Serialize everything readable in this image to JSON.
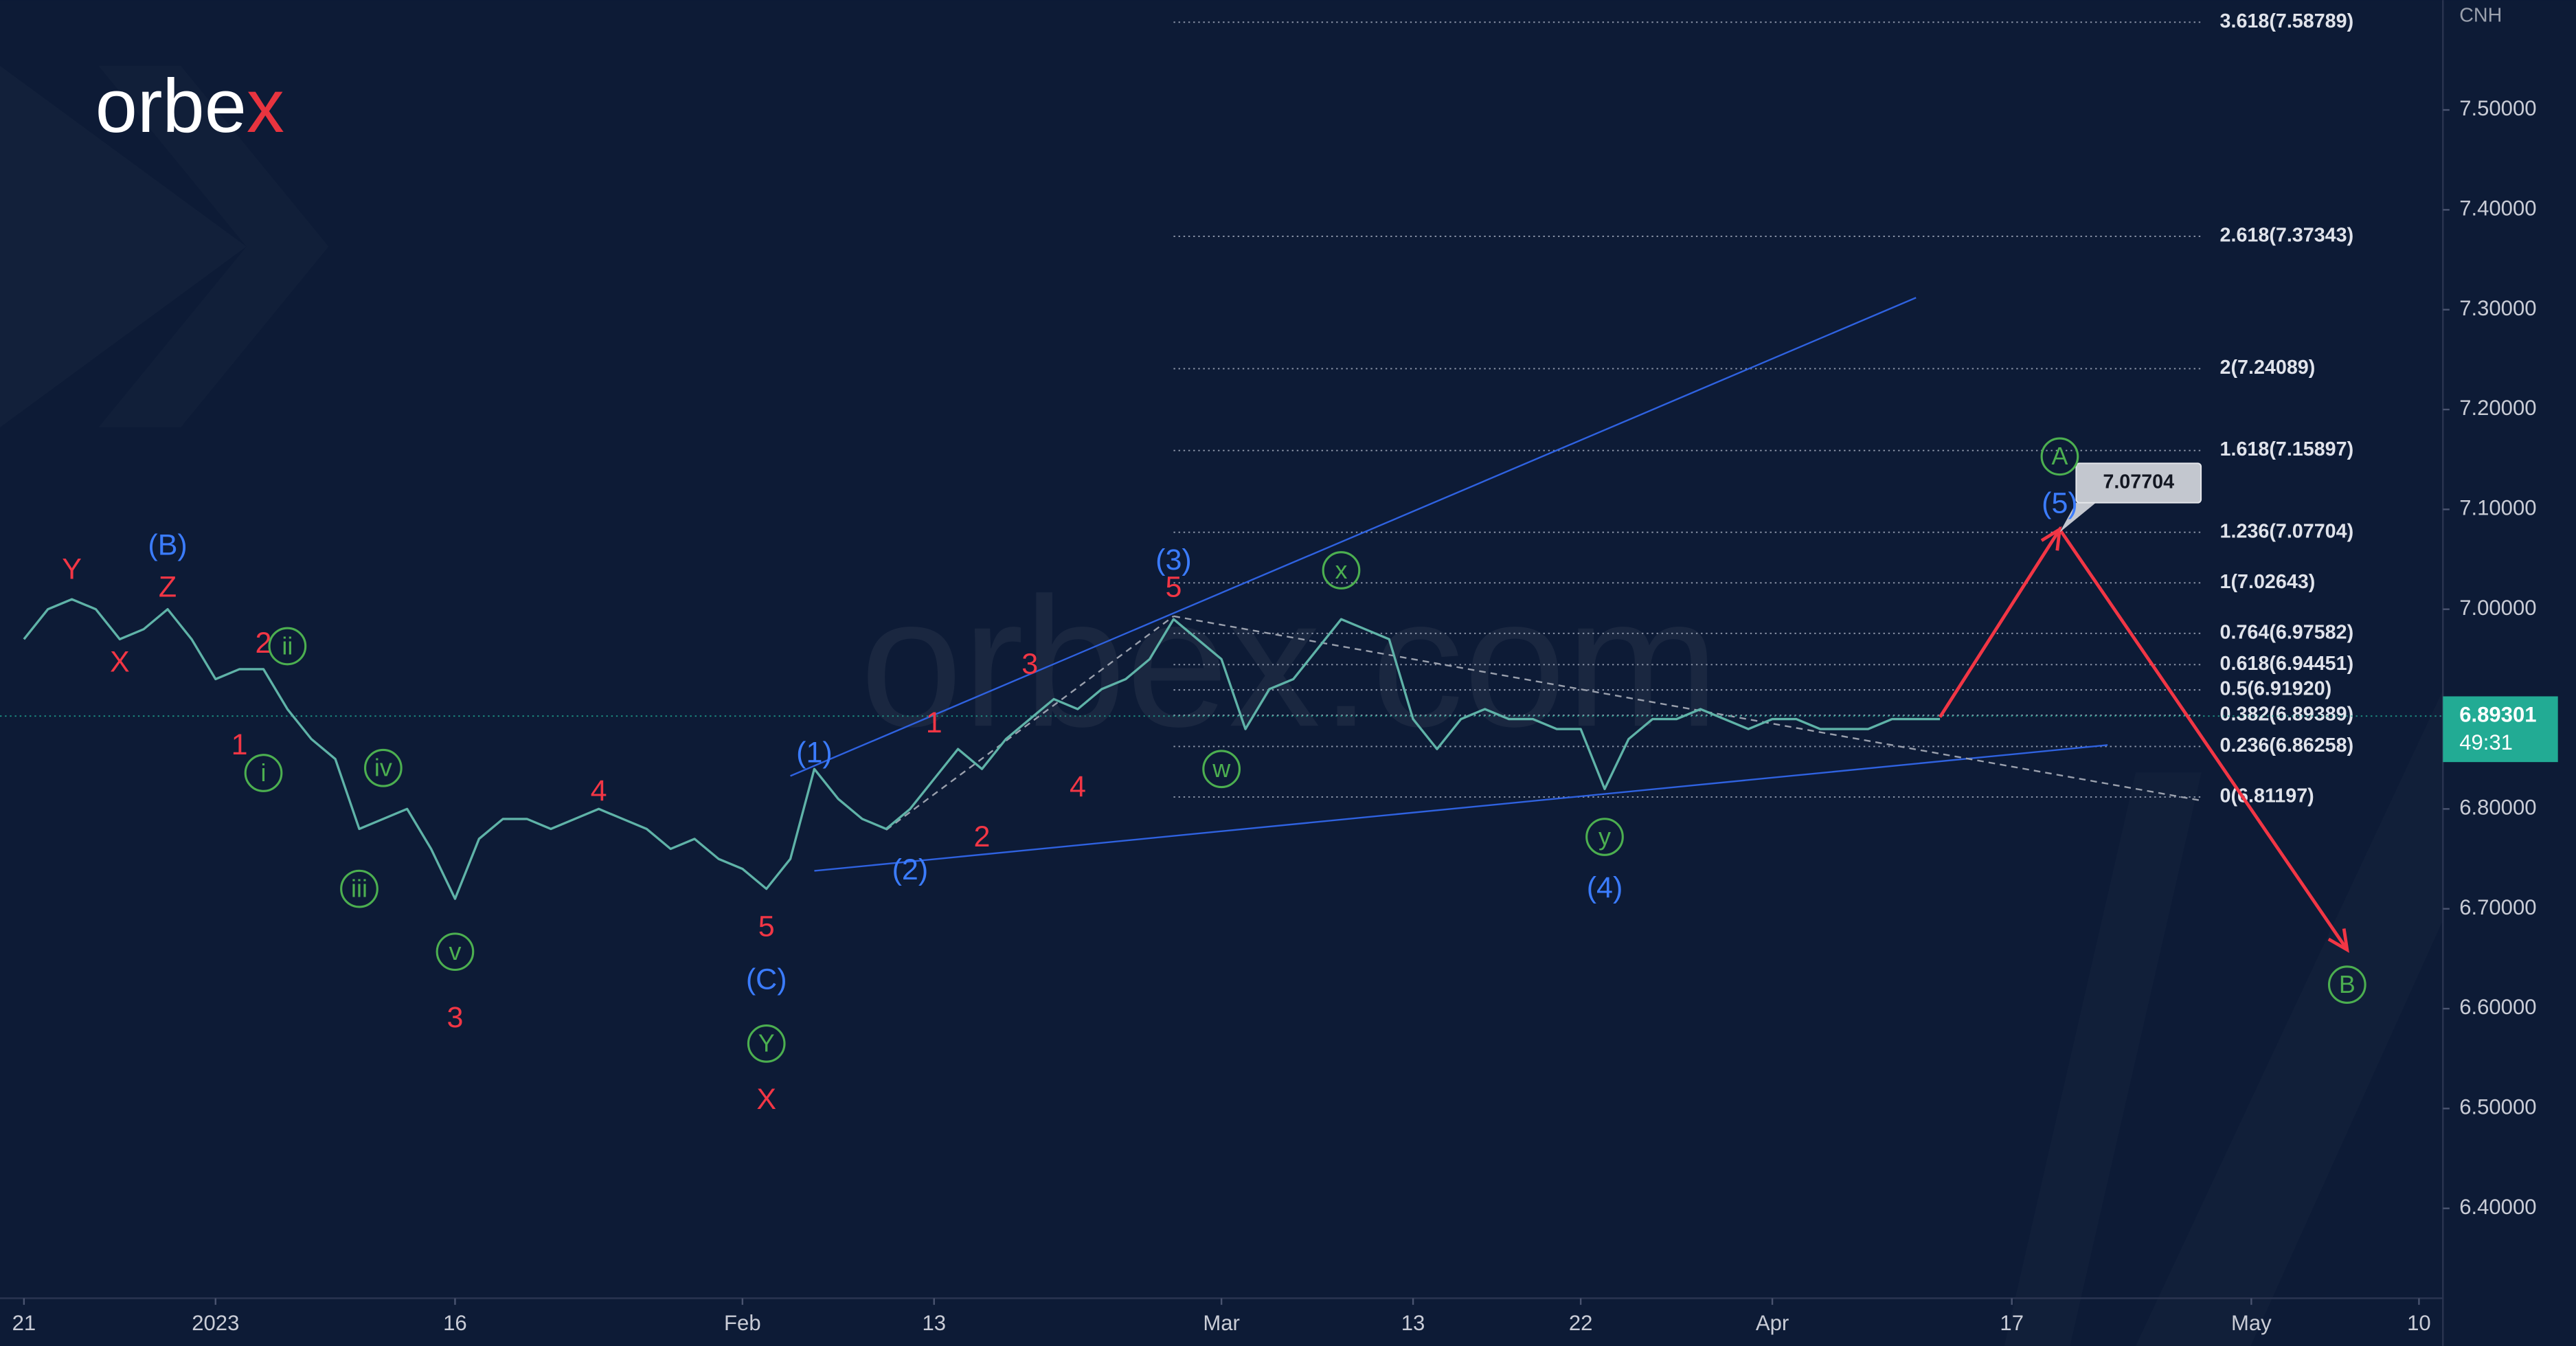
{
  "chart_data": {
    "type": "line",
    "logo": "orbex",
    "watermark": "orbex.com",
    "y_label": "CNH",
    "xlim": [
      "2022-12-20",
      "2023-05-11"
    ],
    "xticks": [
      {
        "value": "2022-12-21",
        "label": "21"
      },
      {
        "value": "2023-01-02",
        "label": "2023"
      },
      {
        "value": "2023-01-16",
        "label": "16"
      },
      {
        "value": "2023-02-01",
        "label": "Feb"
      },
      {
        "value": "2023-02-13",
        "label": "13"
      },
      {
        "value": "2023-03-01",
        "label": "Mar"
      },
      {
        "value": "2023-03-13",
        "label": "13"
      },
      {
        "value": "2023-03-22",
        "label": "22"
      },
      {
        "value": "2023-04-03",
        "label": "Apr"
      },
      {
        "value": "2023-04-17",
        "label": "17"
      },
      {
        "value": "2023-05-01",
        "label": "May"
      },
      {
        "value": "2023-05-10",
        "label": "10"
      }
    ],
    "ylim": [
      6.31,
      7.61
    ],
    "yticks": [
      {
        "value": 7.5,
        "label": "7.50000"
      },
      {
        "value": 7.4,
        "label": "7.40000"
      },
      {
        "value": 7.3,
        "label": "7.30000"
      },
      {
        "value": 7.2,
        "label": "7.20000"
      },
      {
        "value": 7.1,
        "label": "7.10000"
      },
      {
        "value": 7.0,
        "label": "7.00000"
      },
      {
        "value": 6.8,
        "label": "6.80000"
      },
      {
        "value": 6.7,
        "label": "6.70000"
      },
      {
        "value": 6.6,
        "label": "6.60000"
      },
      {
        "value": 6.5,
        "label": "6.50000"
      },
      {
        "value": 6.4,
        "label": "6.40000"
      }
    ],
    "grid": false,
    "color": "#5fb3a8",
    "x": [
      "2022-12-21",
      "2022-12-22",
      "2022-12-23",
      "2022-12-26",
      "2022-12-27",
      "2022-12-28",
      "2022-12-29",
      "2022-12-30",
      "2023-01-02",
      "2023-01-03",
      "2023-01-04",
      "2023-01-05",
      "2023-01-06",
      "2023-01-09",
      "2023-01-10",
      "2023-01-11",
      "2023-01-12",
      "2023-01-13",
      "2023-01-16",
      "2023-01-17",
      "2023-01-18",
      "2023-01-19",
      "2023-01-20",
      "2023-01-23",
      "2023-01-24",
      "2023-01-25",
      "2023-01-26",
      "2023-01-27",
      "2023-01-30",
      "2023-01-31",
      "2023-02-01",
      "2023-02-02",
      "2023-02-03",
      "2023-02-06",
      "2023-02-07",
      "2023-02-08",
      "2023-02-09",
      "2023-02-10",
      "2023-02-13",
      "2023-02-14",
      "2023-02-15",
      "2023-02-16",
      "2023-02-17",
      "2023-02-20",
      "2023-02-21",
      "2023-02-22",
      "2023-02-23",
      "2023-02-24",
      "2023-02-27",
      "2023-02-28",
      "2023-03-01",
      "2023-03-02",
      "2023-03-03",
      "2023-03-06",
      "2023-03-07",
      "2023-03-08",
      "2023-03-09",
      "2023-03-10",
      "2023-03-13",
      "2023-03-14",
      "2023-03-15",
      "2023-03-16",
      "2023-03-17",
      "2023-03-20",
      "2023-03-21",
      "2023-03-22",
      "2023-03-23",
      "2023-03-24",
      "2023-03-27",
      "2023-03-28",
      "2023-03-29",
      "2023-03-30",
      "2023-03-31",
      "2023-04-03",
      "2023-04-04",
      "2023-04-05",
      "2023-04-06",
      "2023-04-07",
      "2023-04-10",
      "2023-04-11",
      "2023-04-12"
    ],
    "values": [
      6.97,
      7.0,
      7.01,
      7.0,
      6.97,
      6.98,
      7.0,
      6.97,
      6.93,
      6.94,
      6.94,
      6.9,
      6.87,
      6.85,
      6.78,
      6.79,
      6.8,
      6.76,
      6.71,
      6.77,
      6.79,
      6.79,
      6.78,
      6.79,
      6.8,
      6.79,
      6.78,
      6.76,
      6.77,
      6.75,
      6.74,
      6.72,
      6.75,
      6.84,
      6.81,
      6.79,
      6.78,
      6.8,
      6.83,
      6.86,
      6.84,
      6.87,
      6.89,
      6.91,
      6.9,
      6.92,
      6.93,
      6.95,
      6.99,
      6.97,
      6.95,
      6.88,
      6.92,
      6.93,
      6.96,
      6.99,
      6.98,
      6.97,
      6.89,
      6.86,
      6.89,
      6.9,
      6.89,
      6.89,
      6.88,
      6.88,
      6.82,
      6.87,
      6.89,
      6.89,
      6.9,
      6.89,
      6.88,
      6.89,
      6.89,
      6.88,
      6.88,
      6.88,
      6.89,
      6.89,
      6.89
    ],
    "last_price": 6.89301,
    "countdown": "49:31",
    "last_price_color": "#22ab94",
    "fib": {
      "x": [
        "2023-02-27",
        "2023-04-27"
      ],
      "color": "#8f98ab",
      "levels": [
        {
          "value": 7.58789,
          "label": "3.618(7.58789)"
        },
        {
          "value": 7.37343,
          "label": "2.618(7.37343)"
        },
        {
          "value": 7.24089,
          "label": "2(7.24089)"
        },
        {
          "value": 7.15897,
          "label": "1.618(7.15897)"
        },
        {
          "value": 7.07704,
          "label": "1.236(7.07704)"
        },
        {
          "value": 7.02643,
          "label": "1(7.02643)"
        },
        {
          "value": 6.97582,
          "label": "0.764(6.97582)"
        },
        {
          "value": 6.94451,
          "label": "0.618(6.94451)"
        },
        {
          "value": 6.9192,
          "label": "0.5(6.91920)"
        },
        {
          "value": 6.89389,
          "label": "0.382(6.89389)"
        },
        {
          "value": 6.86258,
          "label": "0.236(6.86258)"
        },
        {
          "value": 6.81197,
          "label": "0(6.81197)"
        }
      ]
    },
    "lines": [
      {
        "color": "#2f62e0",
        "dashed": false,
        "x": [
          "2023-02-03",
          "2023-04-11"
        ],
        "y": [
          6.833,
          7.312
        ]
      },
      {
        "color": "#2f62e0",
        "dashed": false,
        "x": [
          "2023-02-06",
          "2023-04-21"
        ],
        "y": [
          6.738,
          6.864
        ]
      },
      {
        "color": "#9aa0ad",
        "dashed": true,
        "x": [
          "2023-02-09",
          "2023-02-27"
        ],
        "y": [
          6.779,
          6.993
        ]
      },
      {
        "color": "#9aa0ad",
        "dashed": true,
        "x": [
          "2023-02-27",
          "2023-04-27"
        ],
        "y": [
          6.993,
          6.808
        ]
      }
    ],
    "arrows": {
      "color": "#f23645",
      "x": [
        "2023-04-12",
        "2023-04-19",
        "2023-05-05"
      ],
      "y": [
        6.892,
        7.08,
        6.659
      ]
    },
    "target": 7.07704,
    "annotations": [
      {
        "text": "Y",
        "x": "2022-12-23",
        "y": 7.04,
        "color": "#f23645",
        "circled": false
      },
      {
        "text": "X",
        "x": "2022-12-27",
        "y": 6.947,
        "color": "#f23645",
        "circled": false
      },
      {
        "text": "Z",
        "x": "2022-12-29",
        "y": 7.022,
        "color": "#f23645",
        "circled": false
      },
      {
        "text": "(B)",
        "x": "2022-12-29",
        "y": 7.064,
        "color": "#3b7cff",
        "circled": false
      },
      {
        "text": "2",
        "x": "2023-01-04",
        "y": 6.966,
        "color": "#f23645",
        "circled": false
      },
      {
        "text": "ii",
        "x": "2023-01-05",
        "y": 6.963,
        "color": "#4caf50",
        "circled": true
      },
      {
        "text": "1",
        "x": "2023-01-03",
        "y": 6.864,
        "color": "#f23645",
        "circled": false
      },
      {
        "text": "i",
        "x": "2023-01-04",
        "y": 6.836,
        "color": "#4caf50",
        "circled": true
      },
      {
        "text": "iv",
        "x": "2023-01-11",
        "y": 6.841,
        "color": "#4caf50",
        "circled": true
      },
      {
        "text": "iii",
        "x": "2023-01-10",
        "y": 6.72,
        "color": "#4caf50",
        "circled": true
      },
      {
        "text": "v",
        "x": "2023-01-16",
        "y": 6.657,
        "color": "#4caf50",
        "circled": true
      },
      {
        "text": "3",
        "x": "2023-01-16",
        "y": 6.591,
        "color": "#f23645",
        "circled": false
      },
      {
        "text": "4",
        "x": "2023-01-24",
        "y": 6.818,
        "color": "#f23645",
        "circled": false
      },
      {
        "text": "5",
        "x": "2023-02-02",
        "y": 6.682,
        "color": "#f23645",
        "circled": false
      },
      {
        "text": "(C)",
        "x": "2023-02-02",
        "y": 6.629,
        "color": "#3b7cff",
        "circled": false
      },
      {
        "text": "Y",
        "x": "2023-02-02",
        "y": 6.565,
        "color": "#4caf50",
        "circled": true
      },
      {
        "text": "X",
        "x": "2023-02-02",
        "y": 6.509,
        "color": "#f23645",
        "circled": false
      },
      {
        "text": "(1)",
        "x": "2023-02-06",
        "y": 6.856,
        "color": "#3b7cff",
        "circled": false
      },
      {
        "text": "(2)",
        "x": "2023-02-10",
        "y": 6.739,
        "color": "#3b7cff",
        "circled": false
      },
      {
        "text": "2",
        "x": "2023-02-15",
        "y": 6.772,
        "color": "#f23645",
        "circled": false
      },
      {
        "text": "1",
        "x": "2023-02-13",
        "y": 6.886,
        "color": "#f23645",
        "circled": false
      },
      {
        "text": "3",
        "x": "2023-02-17",
        "y": 6.945,
        "color": "#f23645",
        "circled": false
      },
      {
        "text": "4",
        "x": "2023-02-21",
        "y": 6.822,
        "color": "#f23645",
        "circled": false
      },
      {
        "text": "(3)",
        "x": "2023-02-27",
        "y": 7.049,
        "color": "#3b7cff",
        "circled": false
      },
      {
        "text": "5",
        "x": "2023-02-27",
        "y": 7.022,
        "color": "#f23645",
        "circled": false
      },
      {
        "text": "w",
        "x": "2023-03-01",
        "y": 6.84,
        "color": "#4caf50",
        "circled": true
      },
      {
        "text": "x",
        "x": "2023-03-08",
        "y": 7.039,
        "color": "#4caf50",
        "circled": true
      },
      {
        "text": "y",
        "x": "2023-03-23",
        "y": 6.772,
        "color": "#4caf50",
        "circled": true
      },
      {
        "text": "(4)",
        "x": "2023-03-23",
        "y": 6.721,
        "color": "#3b7cff",
        "circled": false
      },
      {
        "text": "A",
        "x": "2023-04-19",
        "y": 7.153,
        "color": "#4caf50",
        "circled": true
      },
      {
        "text": "(5)",
        "x": "2023-04-19",
        "y": 7.106,
        "color": "#3b7cff",
        "circled": false
      },
      {
        "text": "B",
        "x": "2023-05-05",
        "y": 6.624,
        "color": "#4caf50",
        "circled": true
      }
    ]
  }
}
